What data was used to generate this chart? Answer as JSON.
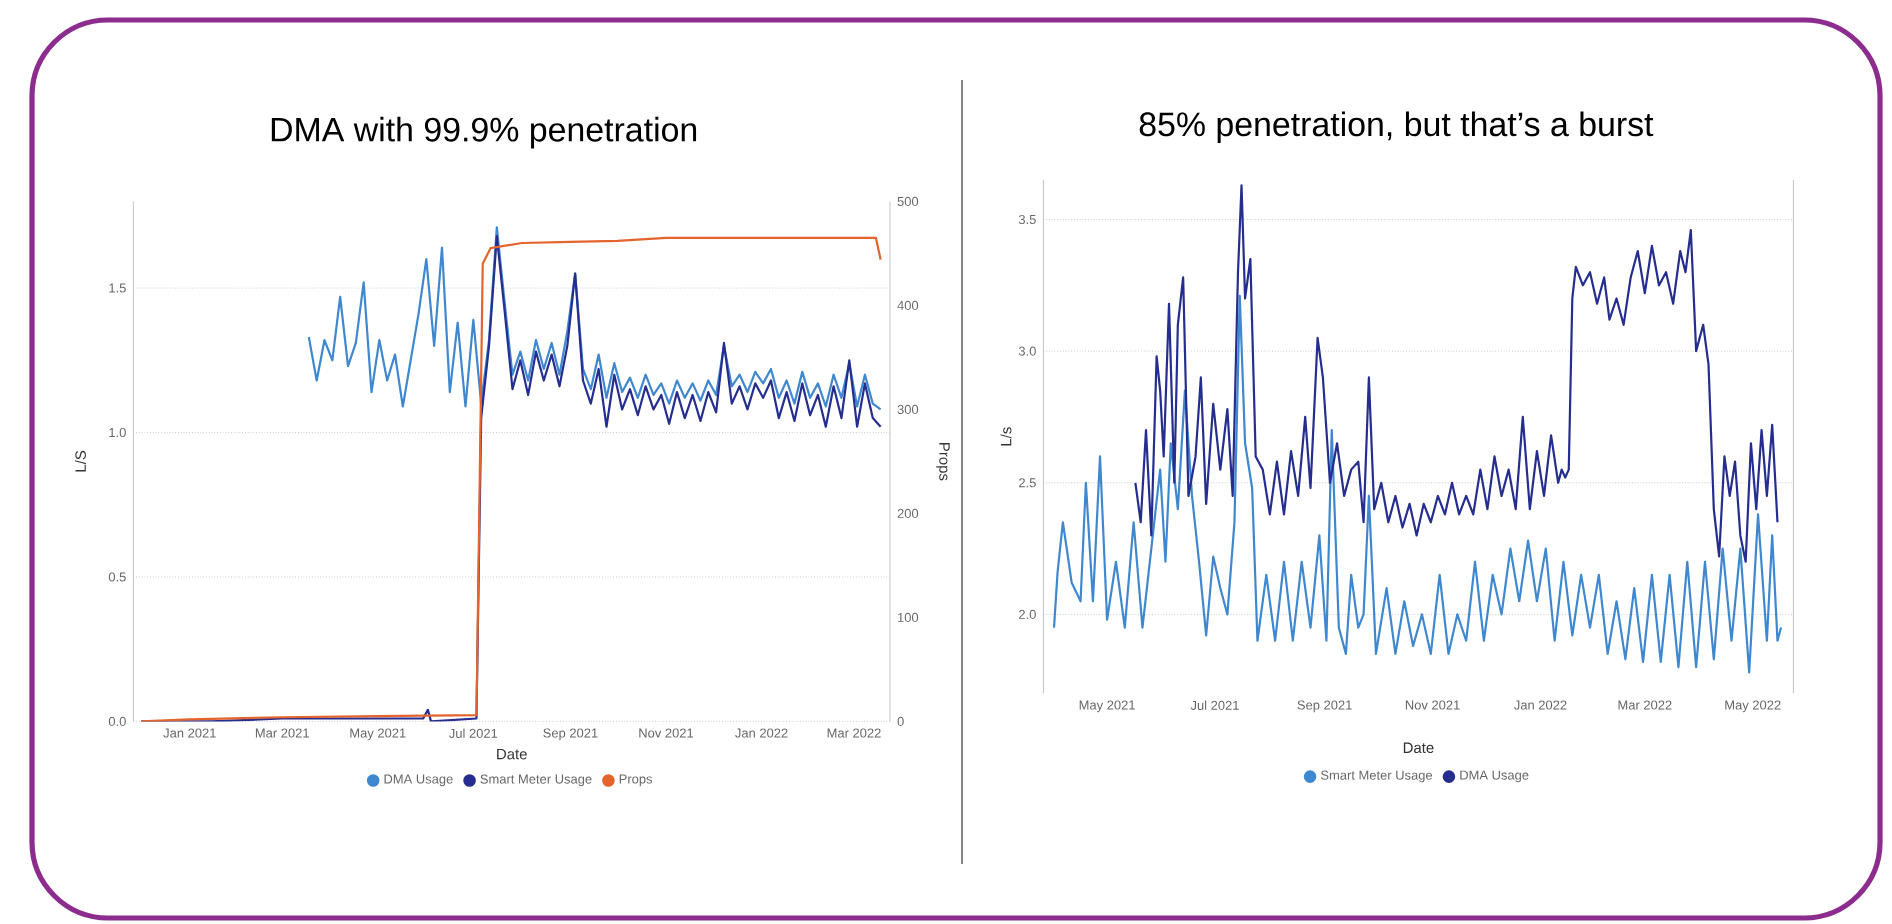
{
  "chart_data": [
    {
      "type": "line",
      "title": "DMA with 99.9% penetration",
      "xlabel": "Date",
      "ylabel": "L/S",
      "y2label": "Props",
      "xlim": [
        "2020-11-26",
        "2022-03-24"
      ],
      "ylim": [
        0,
        1.8
      ],
      "y2lim": [
        0,
        500
      ],
      "xticks": [
        {
          "value": "2021-01-01",
          "label": "Jan 2021"
        },
        {
          "value": "2021-03-01",
          "label": "Mar 2021"
        },
        {
          "value": "2021-05-01",
          "label": "May 2021"
        },
        {
          "value": "2021-07-01",
          "label": "Jul 2021"
        },
        {
          "value": "2021-09-01",
          "label": "Sep 2021"
        },
        {
          "value": "2021-11-01",
          "label": "Nov 2021"
        },
        {
          "value": "2022-01-01",
          "label": "Jan 2022"
        },
        {
          "value": "2022-03-01",
          "label": "Mar 2022"
        }
      ],
      "yticks": [
        {
          "value": 0,
          "label": "0.0"
        },
        0.5,
        {
          "value": 1,
          "label": "1.0"
        },
        1.5
      ],
      "y2ticks": [
        0,
        100,
        200,
        300,
        400,
        500
      ],
      "grid": "y",
      "legend": "bottom",
      "series": [
        {
          "name": "DMA Usage",
          "color": "#3f88d0",
          "x": [
            "2021-03-18",
            "2021-03-23",
            "2021-03-28",
            "2021-04-02",
            "2021-04-07",
            "2021-04-12",
            "2021-04-17",
            "2021-04-22",
            "2021-04-27",
            "2021-05-02",
            "2021-05-07",
            "2021-05-12",
            "2021-05-17",
            "2021-05-22",
            "2021-05-27",
            "2021-06-01",
            "2021-06-06",
            "2021-06-11",
            "2021-06-16",
            "2021-06-21",
            "2021-06-26",
            "2021-07-01",
            "2021-07-06",
            "2021-07-11",
            "2021-07-16",
            "2021-07-21",
            "2021-07-26",
            "2021-07-31",
            "2021-08-05",
            "2021-08-10",
            "2021-08-15",
            "2021-08-20",
            "2021-08-25",
            "2021-08-30",
            "2021-09-04",
            "2021-09-09",
            "2021-09-14",
            "2021-09-19",
            "2021-09-24",
            "2021-09-29",
            "2021-10-04",
            "2021-10-09",
            "2021-10-14",
            "2021-10-19",
            "2021-10-24",
            "2021-10-29",
            "2021-11-03",
            "2021-11-08",
            "2021-11-13",
            "2021-11-18",
            "2021-11-23",
            "2021-11-28",
            "2021-12-03",
            "2021-12-08",
            "2021-12-13",
            "2021-12-18",
            "2021-12-23",
            "2021-12-28",
            "2022-01-02",
            "2022-01-07",
            "2022-01-12",
            "2022-01-17",
            "2022-01-22",
            "2022-01-27",
            "2022-02-01",
            "2022-02-06",
            "2022-02-11",
            "2022-02-16",
            "2022-02-21",
            "2022-02-26",
            "2022-03-03",
            "2022-03-08",
            "2022-03-13",
            "2022-03-18"
          ],
          "values": [
            1.33,
            1.18,
            1.32,
            1.25,
            1.47,
            1.23,
            1.31,
            1.52,
            1.14,
            1.32,
            1.18,
            1.27,
            1.09,
            1.25,
            1.41,
            1.6,
            1.3,
            1.64,
            1.14,
            1.38,
            1.09,
            1.39,
            1.1,
            1.32,
            1.71,
            1.45,
            1.2,
            1.28,
            1.18,
            1.32,
            1.22,
            1.31,
            1.2,
            1.35,
            1.55,
            1.22,
            1.15,
            1.27,
            1.12,
            1.24,
            1.14,
            1.19,
            1.12,
            1.2,
            1.13,
            1.17,
            1.1,
            1.18,
            1.12,
            1.17,
            1.11,
            1.18,
            1.13,
            1.3,
            1.16,
            1.2,
            1.14,
            1.21,
            1.17,
            1.22,
            1.12,
            1.18,
            1.1,
            1.21,
            1.12,
            1.17,
            1.09,
            1.2,
            1.12,
            1.24,
            1.09,
            1.2,
            1.1,
            1.08
          ]
        },
        {
          "name": "Smart Meter Usage",
          "color": "#252d8f",
          "x": [
            "2020-12-01",
            "2021-01-15",
            "2021-03-01",
            "2021-05-30",
            "2021-06-02",
            "2021-06-04",
            "2021-07-03",
            "2021-07-06",
            "2021-07-11",
            "2021-07-16",
            "2021-07-21",
            "2021-07-26",
            "2021-07-31",
            "2021-08-05",
            "2021-08-10",
            "2021-08-15",
            "2021-08-20",
            "2021-08-25",
            "2021-08-30",
            "2021-09-04",
            "2021-09-09",
            "2021-09-14",
            "2021-09-19",
            "2021-09-24",
            "2021-09-29",
            "2021-10-04",
            "2021-10-09",
            "2021-10-14",
            "2021-10-19",
            "2021-10-24",
            "2021-10-29",
            "2021-11-03",
            "2021-11-08",
            "2021-11-13",
            "2021-11-18",
            "2021-11-23",
            "2021-11-28",
            "2021-12-03",
            "2021-12-08",
            "2021-12-13",
            "2021-12-18",
            "2021-12-23",
            "2021-12-28",
            "2022-01-02",
            "2022-01-07",
            "2022-01-12",
            "2022-01-17",
            "2022-01-22",
            "2022-01-27",
            "2022-02-01",
            "2022-02-06",
            "2022-02-11",
            "2022-02-16",
            "2022-02-21",
            "2022-02-26",
            "2022-03-03",
            "2022-03-08",
            "2022-03-13",
            "2022-03-18"
          ],
          "values": [
            0.0,
            0.0,
            0.01,
            0.01,
            0.04,
            0.0,
            0.01,
            1.05,
            1.3,
            1.68,
            1.42,
            1.15,
            1.25,
            1.13,
            1.28,
            1.18,
            1.27,
            1.16,
            1.3,
            1.55,
            1.18,
            1.1,
            1.22,
            1.02,
            1.2,
            1.08,
            1.15,
            1.06,
            1.16,
            1.08,
            1.13,
            1.03,
            1.14,
            1.05,
            1.13,
            1.04,
            1.14,
            1.07,
            1.31,
            1.1,
            1.16,
            1.08,
            1.17,
            1.12,
            1.18,
            1.05,
            1.14,
            1.04,
            1.17,
            1.06,
            1.13,
            1.02,
            1.16,
            1.05,
            1.25,
            1.02,
            1.17,
            1.05,
            1.02
          ]
        },
        {
          "name": "Props",
          "color": "#e4642c",
          "axis": "y2",
          "x": [
            "2020-12-01",
            "2021-01-01",
            "2021-03-01",
            "2021-05-01",
            "2021-07-03",
            "2021-07-07",
            "2021-07-12",
            "2021-08-01",
            "2021-09-01",
            "2021-10-01",
            "2021-11-01",
            "2022-03-15",
            "2022-03-18"
          ],
          "values": [
            0,
            2,
            4,
            5,
            6,
            440,
            455,
            460,
            461,
            462,
            465,
            465,
            444
          ]
        }
      ]
    },
    {
      "type": "line",
      "title": "85% penetration, but that’s a burst",
      "xlabel": "Date",
      "ylabel": "L/s",
      "xlim": [
        "2021-03-26",
        "2022-05-24"
      ],
      "ylim": [
        1.7,
        3.65
      ],
      "xticks": [
        {
          "value": "2021-05-01",
          "label": "May 2021"
        },
        {
          "value": "2021-07-01",
          "label": "Jul 2021"
        },
        {
          "value": "2021-09-01",
          "label": "Sep 2021"
        },
        {
          "value": "2021-11-01",
          "label": "Nov 2021"
        },
        {
          "value": "2022-01-01",
          "label": "Jan 2022"
        },
        {
          "value": "2022-03-01",
          "label": "Mar 2022"
        },
        {
          "value": "2022-05-01",
          "label": "May 2022"
        }
      ],
      "yticks": [
        {
          "value": 2,
          "label": "2.0"
        },
        2.5,
        {
          "value": 3,
          "label": "3.0"
        },
        3.5
      ],
      "grid": "y",
      "legend": "bottom",
      "series": [
        {
          "name": "Smart Meter Usage",
          "color": "#3f88d0",
          "x": [
            "2021-04-01",
            "2021-04-03",
            "2021-04-06",
            "2021-04-11",
            "2021-04-16",
            "2021-04-19",
            "2021-04-23",
            "2021-04-27",
            "2021-05-01",
            "2021-05-06",
            "2021-05-11",
            "2021-05-16",
            "2021-05-21",
            "2021-05-26",
            "2021-05-31",
            "2021-06-03",
            "2021-06-06",
            "2021-06-10",
            "2021-06-14",
            "2021-06-18",
            "2021-06-22",
            "2021-06-26",
            "2021-06-30",
            "2021-07-04",
            "2021-07-08",
            "2021-07-12",
            "2021-07-15",
            "2021-07-18",
            "2021-07-22",
            "2021-07-25",
            "2021-07-30",
            "2021-08-04",
            "2021-08-09",
            "2021-08-14",
            "2021-08-19",
            "2021-08-24",
            "2021-08-29",
            "2021-09-02",
            "2021-09-05",
            "2021-09-09",
            "2021-09-13",
            "2021-09-16",
            "2021-09-20",
            "2021-09-23",
            "2021-09-26",
            "2021-09-30",
            "2021-10-06",
            "2021-10-11",
            "2021-10-16",
            "2021-10-21",
            "2021-10-26",
            "2021-10-31",
            "2021-11-05",
            "2021-11-10",
            "2021-11-15",
            "2021-11-20",
            "2021-11-25",
            "2021-11-30",
            "2021-12-05",
            "2021-12-10",
            "2021-12-15",
            "2021-12-20",
            "2021-12-25",
            "2021-12-30",
            "2022-01-04",
            "2022-01-09",
            "2022-01-14",
            "2022-01-19",
            "2022-01-24",
            "2022-01-29",
            "2022-02-03",
            "2022-02-08",
            "2022-02-13",
            "2022-02-18",
            "2022-02-23",
            "2022-02-28",
            "2022-03-05",
            "2022-03-10",
            "2022-03-15",
            "2022-03-20",
            "2022-03-25",
            "2022-03-30",
            "2022-04-04",
            "2022-04-09",
            "2022-04-14",
            "2022-04-19",
            "2022-04-24",
            "2022-04-29",
            "2022-05-04",
            "2022-05-09",
            "2022-05-12",
            "2022-05-15",
            "2022-05-17"
          ],
          "values": [
            1.95,
            2.16,
            2.35,
            2.12,
            2.05,
            2.5,
            2.05,
            2.6,
            1.98,
            2.2,
            1.95,
            2.35,
            1.95,
            2.25,
            2.55,
            2.2,
            2.65,
            2.4,
            2.85,
            2.45,
            2.2,
            1.92,
            2.22,
            2.1,
            2.0,
            2.35,
            3.21,
            2.65,
            2.48,
            1.9,
            2.15,
            1.9,
            2.2,
            1.9,
            2.2,
            1.95,
            2.3,
            1.9,
            2.7,
            1.95,
            1.85,
            2.15,
            1.95,
            2.0,
            2.45,
            1.85,
            2.1,
            1.85,
            2.05,
            1.88,
            2.0,
            1.85,
            2.15,
            1.85,
            2.0,
            1.9,
            2.2,
            1.9,
            2.15,
            2.0,
            2.25,
            2.05,
            2.28,
            2.05,
            2.25,
            1.9,
            2.2,
            1.92,
            2.15,
            1.95,
            2.15,
            1.85,
            2.05,
            1.83,
            2.1,
            1.82,
            2.15,
            1.82,
            2.15,
            1.8,
            2.2,
            1.8,
            2.2,
            1.83,
            2.25,
            1.9,
            2.25,
            1.78,
            2.38,
            1.9,
            2.3,
            1.9,
            1.95
          ]
        },
        {
          "name": "DMA Usage",
          "color": "#252d8f",
          "x": [
            "2021-05-17",
            "2021-05-20",
            "2021-05-23",
            "2021-05-26",
            "2021-05-29",
            "2021-05-31",
            "2021-06-02",
            "2021-06-05",
            "2021-06-08",
            "2021-06-10",
            "2021-06-13",
            "2021-06-16",
            "2021-06-20",
            "2021-06-23",
            "2021-06-26",
            "2021-06-30",
            "2021-07-04",
            "2021-07-08",
            "2021-07-11",
            "2021-07-14",
            "2021-07-16",
            "2021-07-18",
            "2021-07-21",
            "2021-07-24",
            "2021-07-28",
            "2021-08-01",
            "2021-08-05",
            "2021-08-09",
            "2021-08-13",
            "2021-08-17",
            "2021-08-21",
            "2021-08-24",
            "2021-08-28",
            "2021-08-31",
            "2021-09-04",
            "2021-09-08",
            "2021-09-12",
            "2021-09-16",
            "2021-09-20",
            "2021-09-23",
            "2021-09-26",
            "2021-09-29",
            "2021-10-03",
            "2021-10-07",
            "2021-10-11",
            "2021-10-15",
            "2021-10-19",
            "2021-10-23",
            "2021-10-27",
            "2021-10-31",
            "2021-11-04",
            "2021-11-08",
            "2021-11-12",
            "2021-11-16",
            "2021-11-20",
            "2021-11-24",
            "2021-11-28",
            "2021-12-02",
            "2021-12-06",
            "2021-12-10",
            "2021-12-14",
            "2021-12-18",
            "2021-12-22",
            "2021-12-26",
            "2021-12-30",
            "2022-01-03",
            "2022-01-07",
            "2022-01-11",
            "2022-01-13",
            "2022-01-15",
            "2022-01-17",
            "2022-01-19",
            "2022-01-21",
            "2022-01-25",
            "2022-01-29",
            "2022-02-02",
            "2022-02-06",
            "2022-02-09",
            "2022-02-13",
            "2022-02-17",
            "2022-02-21",
            "2022-02-25",
            "2022-03-01",
            "2022-03-05",
            "2022-03-09",
            "2022-03-13",
            "2022-03-17",
            "2022-03-21",
            "2022-03-24",
            "2022-03-27",
            "2022-03-30",
            "2022-04-03",
            "2022-04-06",
            "2022-04-09",
            "2022-04-12",
            "2022-04-15",
            "2022-04-18",
            "2022-04-21",
            "2022-04-24",
            "2022-04-27",
            "2022-04-30",
            "2022-05-03",
            "2022-05-06",
            "2022-05-09",
            "2022-05-12",
            "2022-05-15"
          ],
          "values": [
            2.5,
            2.35,
            2.7,
            2.3,
            2.98,
            2.85,
            2.6,
            3.18,
            2.5,
            3.1,
            3.28,
            2.45,
            2.6,
            2.9,
            2.42,
            2.8,
            2.55,
            2.78,
            2.45,
            3.3,
            3.63,
            3.2,
            3.35,
            2.6,
            2.55,
            2.38,
            2.58,
            2.38,
            2.62,
            2.45,
            2.75,
            2.48,
            3.05,
            2.9,
            2.5,
            2.65,
            2.45,
            2.55,
            2.58,
            2.35,
            2.9,
            2.4,
            2.5,
            2.35,
            2.45,
            2.33,
            2.42,
            2.3,
            2.42,
            2.35,
            2.45,
            2.38,
            2.5,
            2.38,
            2.45,
            2.38,
            2.55,
            2.4,
            2.6,
            2.45,
            2.55,
            2.4,
            2.75,
            2.4,
            2.62,
            2.45,
            2.68,
            2.5,
            2.55,
            2.52,
            2.55,
            3.2,
            3.32,
            3.25,
            3.3,
            3.18,
            3.28,
            3.12,
            3.2,
            3.1,
            3.28,
            3.38,
            3.22,
            3.4,
            3.25,
            3.3,
            3.18,
            3.38,
            3.3,
            3.46,
            3.0,
            3.1,
            2.95,
            2.4,
            2.22,
            2.6,
            2.45,
            2.58,
            2.3,
            2.2,
            2.65,
            2.4,
            2.7,
            2.45,
            2.72,
            2.35
          ]
        }
      ]
    }
  ]
}
